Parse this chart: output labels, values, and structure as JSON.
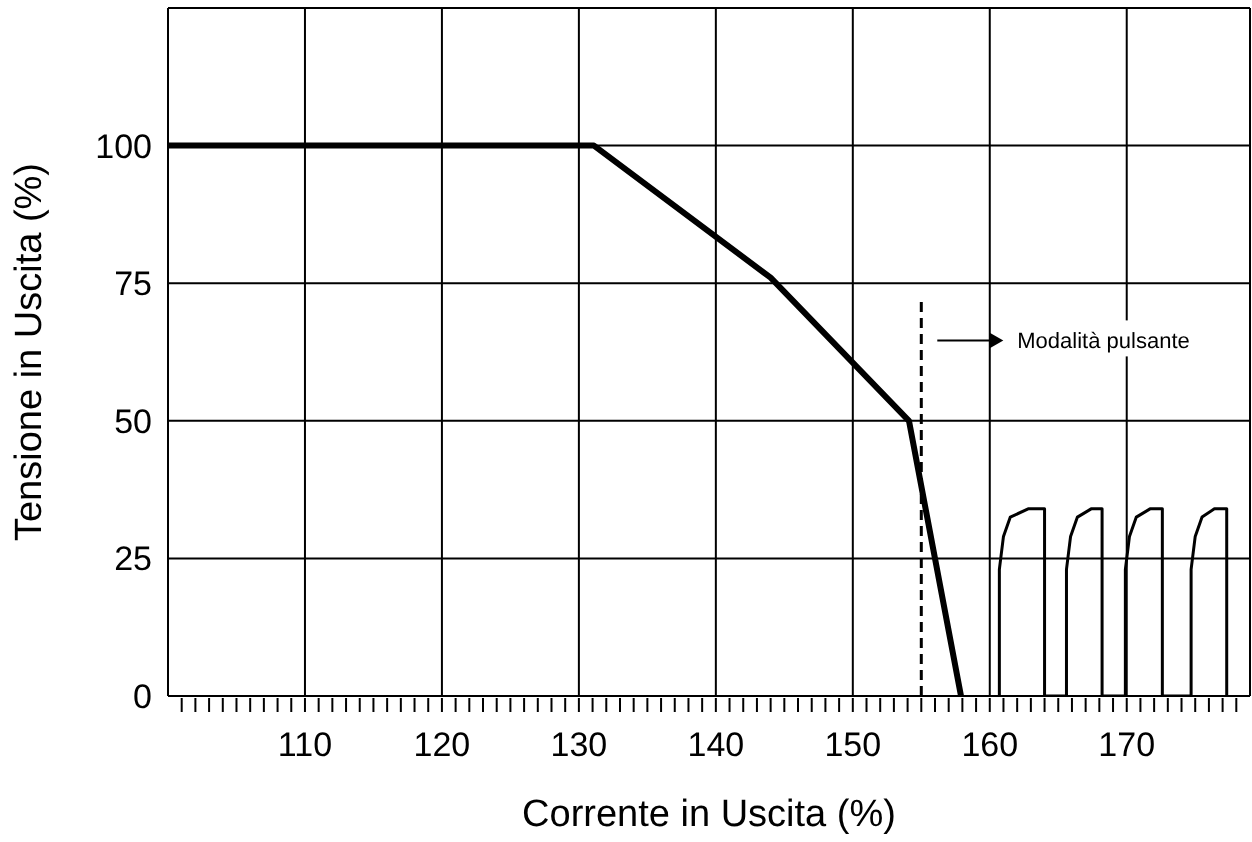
{
  "chart_data": {
    "type": "line",
    "xlabel": "Corrente in Uscita (%)",
    "ylabel": "Tensione in Uscita (%)",
    "xlim": [
      100,
      179
    ],
    "ylim": [
      0,
      125
    ],
    "xticks": [
      {
        "value": 101,
        "label": null
      },
      {
        "value": 102,
        "label": null
      },
      {
        "value": 103,
        "label": null
      },
      {
        "value": 104,
        "label": null
      },
      {
        "value": 105,
        "label": null
      },
      {
        "value": 106,
        "label": null
      },
      {
        "value": 107,
        "label": null
      },
      {
        "value": 108,
        "label": null
      },
      {
        "value": 109,
        "label": null
      },
      110,
      {
        "value": 111,
        "label": null
      },
      {
        "value": 112,
        "label": null
      },
      {
        "value": 113,
        "label": null
      },
      {
        "value": 114,
        "label": null
      },
      {
        "value": 115,
        "label": null
      },
      {
        "value": 116,
        "label": null
      },
      {
        "value": 117,
        "label": null
      },
      {
        "value": 118,
        "label": null
      },
      {
        "value": 119,
        "label": null
      },
      120,
      {
        "value": 121,
        "label": null
      },
      {
        "value": 122,
        "label": null
      },
      {
        "value": 123,
        "label": null
      },
      {
        "value": 124,
        "label": null
      },
      {
        "value": 125,
        "label": null
      },
      {
        "value": 126,
        "label": null
      },
      {
        "value": 127,
        "label": null
      },
      {
        "value": 128,
        "label": null
      },
      {
        "value": 129,
        "label": null
      },
      130,
      {
        "value": 131,
        "label": null
      },
      {
        "value": 132,
        "label": null
      },
      {
        "value": 133,
        "label": null
      },
      {
        "value": 134,
        "label": null
      },
      {
        "value": 135,
        "label": null
      },
      {
        "value": 136,
        "label": null
      },
      {
        "value": 137,
        "label": null
      },
      {
        "value": 138,
        "label": null
      },
      {
        "value": 139,
        "label": null
      },
      140,
      {
        "value": 141,
        "label": null
      },
      {
        "value": 142,
        "label": null
      },
      {
        "value": 143,
        "label": null
      },
      {
        "value": 144,
        "label": null
      },
      {
        "value": 145,
        "label": null
      },
      {
        "value": 146,
        "label": null
      },
      {
        "value": 147,
        "label": null
      },
      {
        "value": 148,
        "label": null
      },
      {
        "value": 149,
        "label": null
      },
      150,
      {
        "value": 151,
        "label": null
      },
      {
        "value": 152,
        "label": null
      },
      {
        "value": 153,
        "label": null
      },
      {
        "value": 154,
        "label": null
      },
      {
        "value": 155,
        "label": null
      },
      {
        "value": 156,
        "label": null
      },
      {
        "value": 157,
        "label": null
      },
      {
        "value": 158,
        "label": null
      },
      {
        "value": 159,
        "label": null
      },
      160,
      {
        "value": 161,
        "label": null
      },
      {
        "value": 162,
        "label": null
      },
      {
        "value": 163,
        "label": null
      },
      {
        "value": 164,
        "label": null
      },
      {
        "value": 165,
        "label": null
      },
      {
        "value": 166,
        "label": null
      },
      {
        "value": 167,
        "label": null
      },
      {
        "value": 168,
        "label": null
      },
      {
        "value": 169,
        "label": null
      },
      170,
      {
        "value": 171,
        "label": null
      },
      {
        "value": 172,
        "label": null
      },
      {
        "value": 173,
        "label": null
      },
      {
        "value": 174,
        "label": null
      },
      {
        "value": 175,
        "label": null
      },
      {
        "value": 176,
        "label": null
      },
      {
        "value": 177,
        "label": null
      },
      {
        "value": 178,
        "label": null
      }
    ],
    "yticks": [
      0,
      25,
      50,
      75,
      100
    ],
    "grid": true,
    "marker": "none",
    "line_style": "solid",
    "series": [
      {
        "color": "#000000",
        "x": [
          100,
          131.1,
          144,
          154.1,
          157.9
        ],
        "values": [
          100,
          100,
          76,
          50,
          0
        ]
      },
      {
        "color": "#000000",
        "x": [
          160.7,
          160.7,
          161,
          161.5,
          162.8,
          164,
          164,
          165.6,
          165.6,
          165.9,
          166.4,
          167.4,
          168.2,
          168.2,
          169.9,
          169.9,
          170.2,
          170.7,
          171.7,
          172.6,
          172.6,
          174.7,
          174.7,
          175,
          175.5,
          176.4,
          177.3,
          177.3
        ],
        "values": [
          0,
          23,
          29,
          32.5,
          34,
          34,
          0,
          0,
          23,
          29,
          32.5,
          34,
          34,
          0,
          0,
          23,
          29,
          32.5,
          34,
          34,
          0,
          0,
          23,
          29,
          32.5,
          34,
          34,
          0
        ]
      }
    ],
    "ref_lines": [
      {
        "axis": "x",
        "value": 155,
        "label": "Modalità pulsante",
        "line_style": "dashed",
        "color": "#000000"
      }
    ]
  }
}
